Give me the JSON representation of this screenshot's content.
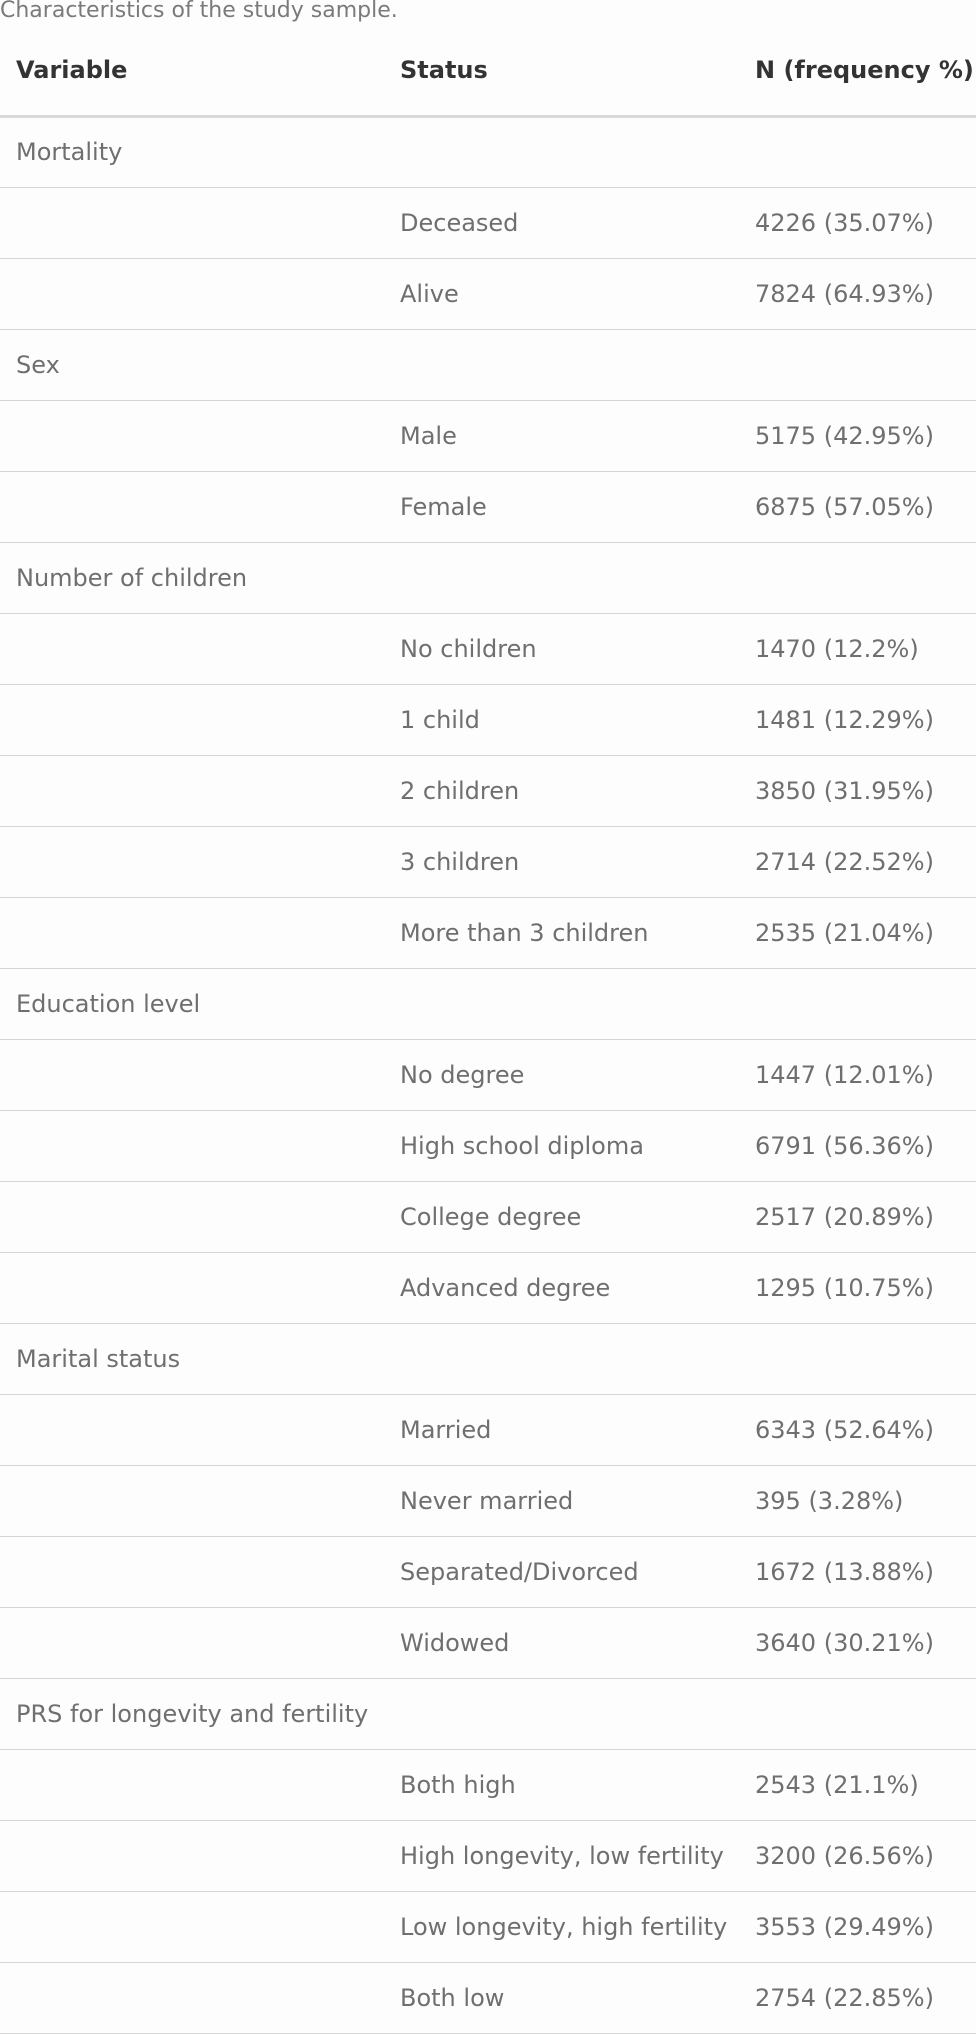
{
  "caption": "Characteristics of the study sample.",
  "table": {
    "headers": {
      "variable": "Variable",
      "status": "Status",
      "n": "N (frequency %)"
    },
    "rows": [
      {
        "variable": "Mortality",
        "status": "",
        "n": ""
      },
      {
        "variable": "",
        "status": "Deceased",
        "n": "4226 (35.07%)"
      },
      {
        "variable": "",
        "status": "Alive",
        "n": "7824 (64.93%)"
      },
      {
        "variable": "Sex",
        "status": "",
        "n": ""
      },
      {
        "variable": "",
        "status": "Male",
        "n": "5175 (42.95%)"
      },
      {
        "variable": "",
        "status": "Female",
        "n": "6875 (57.05%)"
      },
      {
        "variable": "Number of children",
        "status": "",
        "n": ""
      },
      {
        "variable": "",
        "status": "No children",
        "n": "1470 (12.2%)"
      },
      {
        "variable": "",
        "status": "1 child",
        "n": "1481 (12.29%)"
      },
      {
        "variable": "",
        "status": "2 children",
        "n": "3850 (31.95%)"
      },
      {
        "variable": "",
        "status": "3 children",
        "n": "2714 (22.52%)"
      },
      {
        "variable": "",
        "status": "More than 3 children",
        "n": "2535 (21.04%)"
      },
      {
        "variable": "Education level",
        "status": "",
        "n": ""
      },
      {
        "variable": "",
        "status": "No degree",
        "n": "1447 (12.01%)"
      },
      {
        "variable": "",
        "status": "High school diploma",
        "n": "6791 (56.36%)"
      },
      {
        "variable": "",
        "status": "College degree",
        "n": "2517 (20.89%)"
      },
      {
        "variable": "",
        "status": "Advanced degree",
        "n": "1295 (10.75%)"
      },
      {
        "variable": "Marital status",
        "status": "",
        "n": ""
      },
      {
        "variable": "",
        "status": "Married",
        "n": "6343 (52.64%)"
      },
      {
        "variable": "",
        "status": "Never married",
        "n": "395 (3.28%)"
      },
      {
        "variable": "",
        "status": "Separated/Divorced",
        "n": "1672 (13.88%)"
      },
      {
        "variable": "",
        "status": "Widowed",
        "n": "3640 (30.21%)"
      },
      {
        "variable": "PRS for longevity and fertility",
        "status": "",
        "n": ""
      },
      {
        "variable": "",
        "status": "Both high",
        "n": "2543 (21.1%)"
      },
      {
        "variable": "",
        "status": "High longevity, low fertility",
        "n": "3200 (26.56%)"
      },
      {
        "variable": "",
        "status": "Low longevity, high fertility",
        "n": "3553 (29.49%)"
      },
      {
        "variable": "",
        "status": "Both low",
        "n": "2754 (22.85%)"
      }
    ]
  }
}
